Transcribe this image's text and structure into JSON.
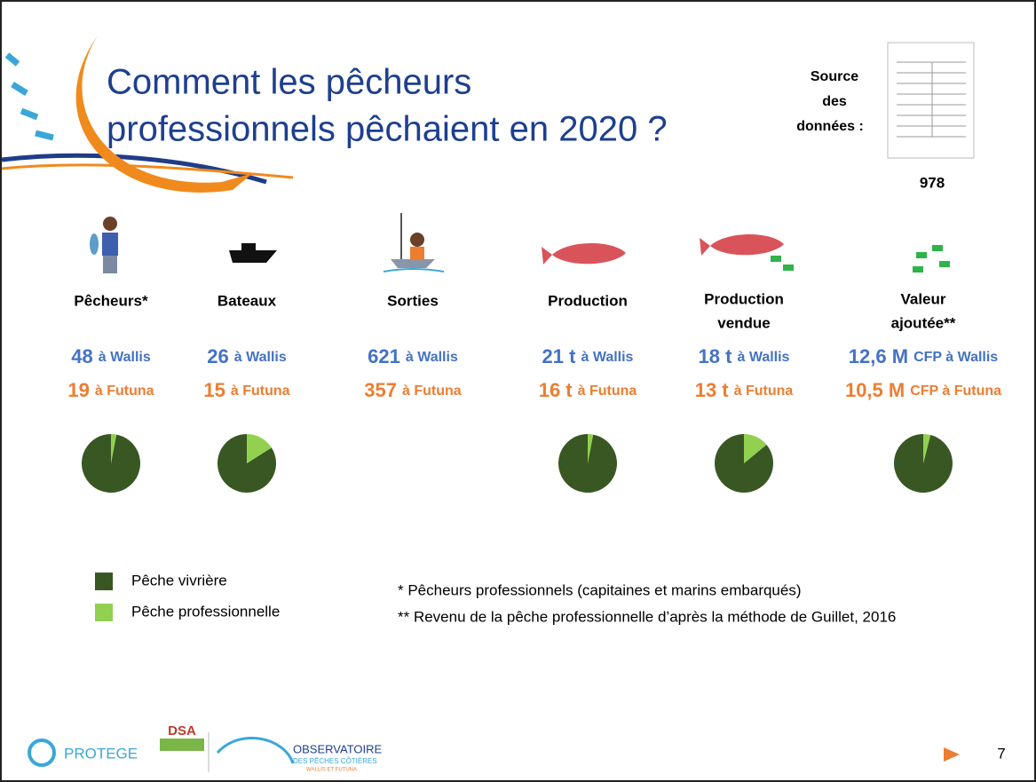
{
  "header": {
    "title_lines": [
      "Comment les pêcheurs",
      "professionnels pêchaient en 2020 ?"
    ],
    "source_lines": [
      "Source",
      "des",
      "données :"
    ],
    "source_count": "978"
  },
  "columns": [
    {
      "label_lines": [
        "Pêcheurs*"
      ],
      "wallis": {
        "main": "48",
        "rest": "à Wallis"
      },
      "futuna": {
        "main": "19",
        "rest": "à Futuna"
      },
      "pie": {
        "vivriere": 97,
        "professionnelle": 3
      }
    },
    {
      "label_lines": [
        "Bateaux"
      ],
      "wallis": {
        "main": "26",
        "rest": "à Wallis"
      },
      "futuna": {
        "main": "15",
        "rest": "à Futuna"
      },
      "pie": {
        "vivriere": 84,
        "professionnelle": 16
      }
    },
    {
      "label_lines": [
        "Sorties"
      ],
      "wallis": {
        "main": "621",
        "rest": "à Wallis"
      },
      "futuna": {
        "main": "357",
        "rest": "à Futuna"
      }
    },
    {
      "label_lines": [
        "Production"
      ],
      "wallis": {
        "main": "21 t",
        "rest": "à Wallis"
      },
      "futuna": {
        "main": "16 t",
        "rest": "à Futuna"
      },
      "pie": {
        "vivriere": 97,
        "professionnelle": 3
      }
    },
    {
      "label_lines": [
        "Production",
        "vendue"
      ],
      "wallis": {
        "main": "18 t",
        "rest": "à Wallis"
      },
      "futuna": {
        "main": "13 t",
        "rest": "à Futuna"
      },
      "pie": {
        "vivriere": 86,
        "professionnelle": 14
      }
    },
    {
      "label_lines": [
        "Valeur",
        "ajoutée**"
      ],
      "wallis": {
        "main": "12,6 M",
        "rest": "CFP à Wallis"
      },
      "futuna": {
        "main": "10,5 M",
        "rest": "CFP à Futuna"
      },
      "pie": {
        "vivriere": 96,
        "professionnelle": 4
      }
    }
  ],
  "legend": [
    {
      "name": "Pêche vivrière",
      "color": "#385723"
    },
    {
      "name": "Pêche professionnelle",
      "color": "#92d050"
    }
  ],
  "wallis_color": "#4472c4",
  "futuna_color": "#ed7d31",
  "footnotes": [
    "* Pêcheurs professionnels (capitaines et marins embarqués)",
    "** Revenu de la pêche professionnelle d’après la méthode de Guillet, 2016"
  ],
  "footer": {
    "protege": "PROTEGE",
    "dsa": "DSA",
    "observatoire": "OBSERVATOIRE",
    "observatoire_sub": "DES PÊCHES CÔTIÈRES",
    "observatoire_place": "WALLIS ET FUTUNA",
    "page_number": "7"
  }
}
